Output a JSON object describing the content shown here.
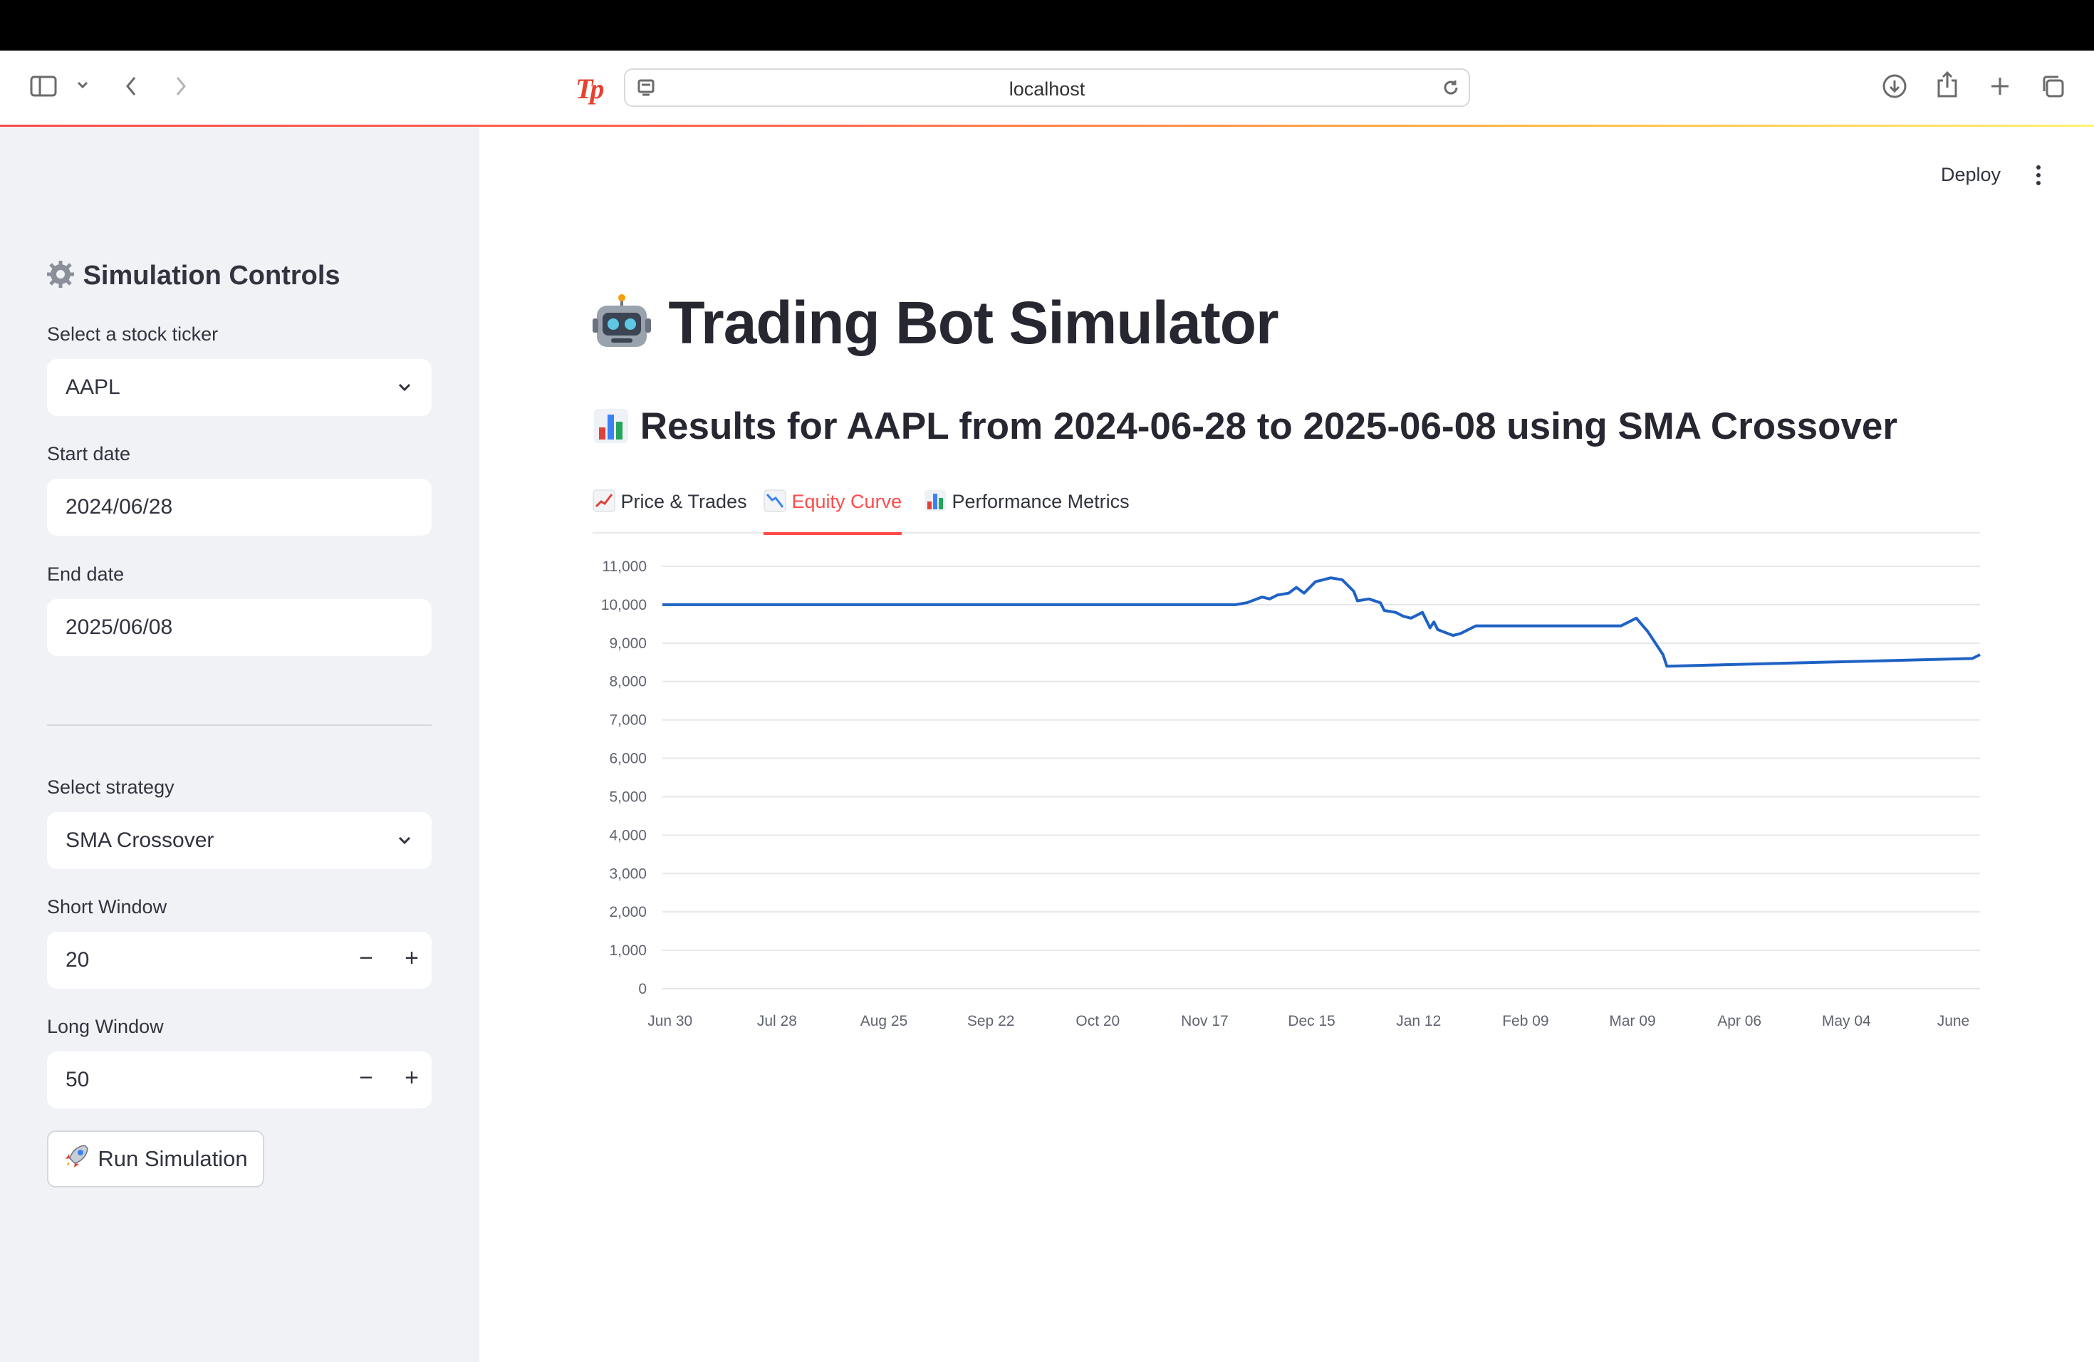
{
  "browser": {
    "url": "localhost"
  },
  "sidebar": {
    "title": "Simulation Controls",
    "ticker": {
      "label": "Select a stock ticker",
      "value": "AAPL"
    },
    "start_date": {
      "label": "Start date",
      "value": "2024/06/28"
    },
    "end_date": {
      "label": "End date",
      "value": "2025/06/08"
    },
    "strategy": {
      "label": "Select strategy",
      "value": "SMA Crossover"
    },
    "short_window": {
      "label": "Short Window",
      "value": "20"
    },
    "long_window": {
      "label": "Long Window",
      "value": "50"
    },
    "run_button": "Run Simulation"
  },
  "header": {
    "deploy": "Deploy"
  },
  "main": {
    "title": "Trading Bot Simulator",
    "subtitle": "Results for AAPL from 2024-06-28 to 2025-06-08 using SMA Crossover",
    "tabs": [
      {
        "label": "Price & Trades",
        "active": false
      },
      {
        "label": "Equity Curve",
        "active": true
      },
      {
        "label": "Performance Metrics",
        "active": false
      }
    ]
  },
  "colors": {
    "accent": "#ff4b4b",
    "line": "#1f62c4",
    "sidebar_bg": "#f0f2f6"
  },
  "chart_data": {
    "type": "line",
    "title": "",
    "xlabel": "",
    "ylabel": "",
    "ylim": [
      0,
      11000
    ],
    "yticks": [
      0,
      1000,
      2000,
      3000,
      4000,
      5000,
      6000,
      7000,
      8000,
      9000,
      10000,
      11000
    ],
    "ytick_labels": [
      "0",
      "1,000",
      "2,000",
      "3,000",
      "4,000",
      "5,000",
      "6,000",
      "7,000",
      "8,000",
      "9,000",
      "10,000",
      "11,000"
    ],
    "xlim": [
      "2024-06-28",
      "2025-06-08"
    ],
    "xticks": [
      "2024-06-30",
      "2024-07-28",
      "2024-08-25",
      "2024-09-22",
      "2024-10-20",
      "2024-11-17",
      "2024-12-15",
      "2025-01-12",
      "2025-02-09",
      "2025-03-09",
      "2025-04-06",
      "2025-05-04",
      "2025-06-01"
    ],
    "xtick_labels": [
      "Jun 30",
      "Jul 28",
      "Aug 25",
      "Sep 22",
      "Oct 20",
      "Nov 17",
      "Dec 15",
      "Jan 12",
      "Feb 09",
      "Mar 09",
      "Apr 06",
      "May 04",
      "June"
    ],
    "grid": true,
    "series": [
      {
        "x": [
          "2024-06-28",
          "2024-11-25",
          "2024-11-28",
          "2024-12-02",
          "2024-12-04",
          "2024-12-06",
          "2024-12-09",
          "2024-12-11",
          "2024-12-13",
          "2024-12-16",
          "2024-12-18",
          "2024-12-20",
          "2024-12-23",
          "2024-12-24",
          "2024-12-26",
          "2024-12-27",
          "2024-12-30",
          "2025-01-02",
          "2025-01-03",
          "2025-01-06",
          "2025-01-08",
          "2025-01-10",
          "2025-01-13",
          "2025-01-15",
          "2025-01-16",
          "2025-01-17",
          "2025-01-21",
          "2025-01-23",
          "2025-01-27",
          "2025-01-29",
          "2025-01-31",
          "2025-03-06",
          "2025-03-10",
          "2025-03-13",
          "2025-03-17",
          "2025-03-18",
          "2025-06-06",
          "2025-06-08"
        ],
        "y": [
          10000,
          10000,
          10050,
          10200,
          10150,
          10250,
          10300,
          10450,
          10300,
          10600,
          10650,
          10700,
          10650,
          10550,
          10350,
          10100,
          10150,
          10050,
          9850,
          9800,
          9700,
          9650,
          9800,
          9400,
          9550,
          9350,
          9200,
          9250,
          9450,
          9450,
          9450,
          9450,
          9650,
          9300,
          8700,
          8400,
          8600,
          8700
        ]
      }
    ]
  }
}
